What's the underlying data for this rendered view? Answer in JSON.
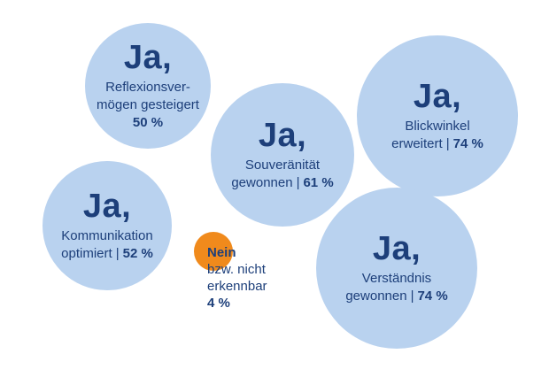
{
  "chart_data": {
    "type": "bubble",
    "items": [
      {
        "heading": "Ja,",
        "label_lines": [
          "Reflexionsver-",
          "mögen gesteigert"
        ],
        "value": 50,
        "value_label": "50 %"
      },
      {
        "heading": "Ja,",
        "label_lines": [
          "Souveränität",
          "gewonnen"
        ],
        "value": 61,
        "value_label": "61 %"
      },
      {
        "heading": "Ja,",
        "label_lines": [
          "Blickwinkel",
          "erweitert"
        ],
        "value": 74,
        "value_label": "74 %"
      },
      {
        "heading": "Ja,",
        "label_lines": [
          "Kommunikation",
          "optimiert"
        ],
        "value": 52,
        "value_label": "52 %"
      },
      {
        "heading": "Ja,",
        "label_lines": [
          "Verständnis",
          "gewonnen"
        ],
        "value": 74,
        "value_label": "74 %"
      },
      {
        "heading": "Nein",
        "label_lines": [
          "bzw. nicht",
          "erkennbar"
        ],
        "value": 4,
        "value_label": "4 %"
      }
    ],
    "colors": {
      "yes": "#b9d2ef",
      "no": "#f08a1c",
      "text": "#1d3f7a"
    },
    "separator": "|"
  }
}
